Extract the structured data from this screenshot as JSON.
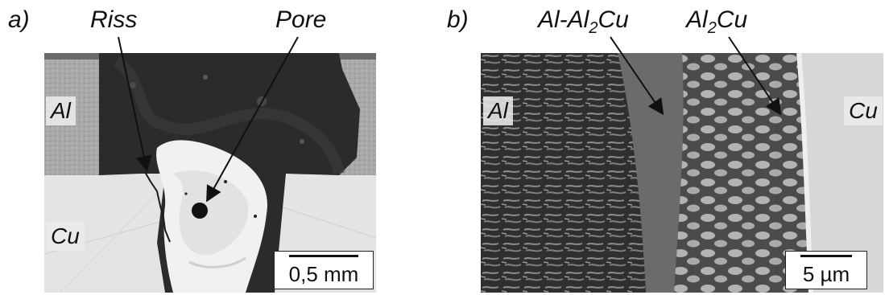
{
  "panel_a": {
    "letter": "a)",
    "callouts": {
      "left": "Riss",
      "right": "Pore"
    },
    "material_labels": {
      "top": "Al",
      "bottom": "Cu"
    },
    "scale_bar": "0,5 mm"
  },
  "panel_b": {
    "letter": "b)",
    "callouts": {
      "left_prefix": "Al-Al",
      "left_sub": "2",
      "left_suffix": "Cu",
      "right_prefix": "Al",
      "right_sub": "2",
      "right_suffix": "Cu"
    },
    "material_labels": {
      "left": "Al",
      "right": "Cu"
    },
    "scale_bar": "5 µm"
  }
}
